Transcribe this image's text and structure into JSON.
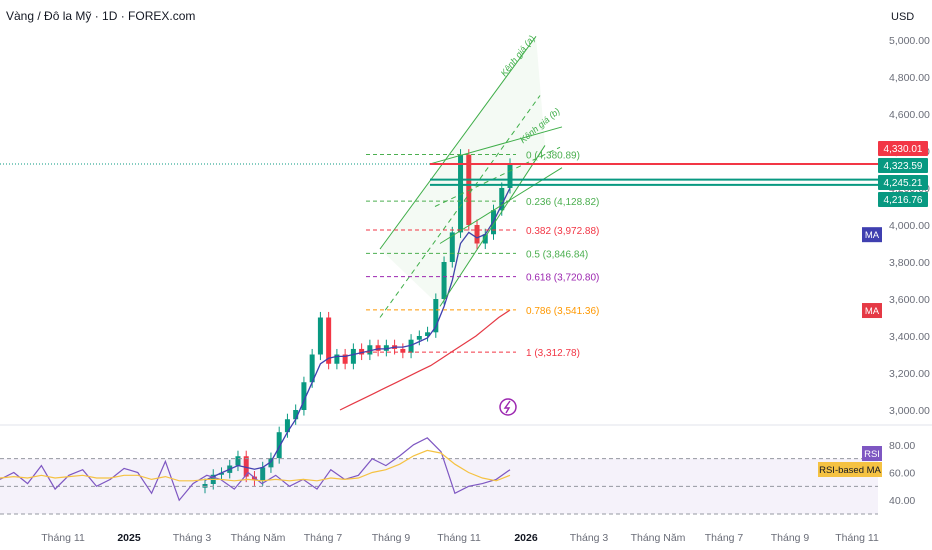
{
  "header": {
    "title": "Vàng / Đô la Mỹ · 1D · FOREX.com",
    "currency": "USD"
  },
  "colors": {
    "up": "#089981",
    "down": "#f23645",
    "ma_slow": "#e53945",
    "ma_fast": "#3f3fb0",
    "rsi": "#7e57c2",
    "rsi_ma": "#f5c242",
    "channel": "#3fae49",
    "text": "#131722",
    "axis": "#6a6d78"
  },
  "chart_data": [
    {
      "type": "line",
      "title": "Vàng / Đô la Mỹ · 1D · FOREX.com",
      "ylabel": "USD",
      "y_ticks": [
        "5,000.00",
        "4,800.00",
        "4,600.00",
        "4,400.00",
        "4,200.00",
        "4,000.00",
        "3,800.00",
        "3,600.00",
        "3,400.00",
        "3,200.00",
        "3,000.00"
      ],
      "x_ticks": [
        "Tháng 11",
        "2025",
        "Tháng 3",
        "Tháng Năm",
        "Tháng 7",
        "Tháng 9",
        "Tháng 11",
        "2026",
        "Tháng 3",
        "Tháng Năm",
        "Tháng 7",
        "Tháng 9",
        "Tháng 11"
      ],
      "ylim": [
        2950,
        5050
      ],
      "price": [
        2600,
        2650,
        2660,
        2700,
        2750,
        2640,
        2620,
        2690,
        2740,
        2880,
        2950,
        3000,
        3150,
        3300,
        3500,
        3250,
        3300,
        3250,
        3330,
        3300,
        3350,
        3320,
        3350,
        3330,
        3310,
        3380,
        3400,
        3420,
        3600,
        3800,
        3960,
        4380,
        4000,
        3900,
        3950,
        4080,
        4200,
        4330
      ],
      "ma_fast": [
        2620,
        2640,
        2660,
        2680,
        2700,
        2690,
        2680,
        2690,
        2720,
        2800,
        2880,
        2950,
        3050,
        3150,
        3250,
        3280,
        3290,
        3290,
        3300,
        3310,
        3320,
        3330,
        3330,
        3340,
        3340,
        3350,
        3370,
        3390,
        3450,
        3560,
        3700,
        3900,
        3960,
        3930,
        3950,
        4020,
        4110,
        4200
      ],
      "ma_slow": [
        3000,
        3030,
        3060,
        3090,
        3120,
        3150,
        3180,
        3210,
        3240,
        3280,
        3320,
        3360,
        3400,
        3450,
        3500,
        3540
      ],
      "ma_labels": [
        "MA",
        "MA"
      ],
      "fib_levels": [
        {
          "label": "0 (4,380.89)",
          "value": 4380.89,
          "color": "#4caf50"
        },
        {
          "label": "0.236 (4,128.82)",
          "value": 4128.82,
          "color": "#4caf50"
        },
        {
          "label": "0.382 (3,972.88)",
          "value": 3972.88,
          "color": "#f23645"
        },
        {
          "label": "0.5 (3,846.84)",
          "value": 3846.84,
          "color": "#4caf50"
        },
        {
          "label": "0.618 (3,720.80)",
          "value": 3720.8,
          "color": "#9c27b0"
        },
        {
          "label": "0.786 (3,541.36)",
          "value": 3541.36,
          "color": "#ff9800"
        },
        {
          "label": "1 (3,312.78)",
          "value": 3312.78,
          "color": "#f23645"
        }
      ],
      "channel_labels": [
        "Kênh giá (a)",
        "Kênh giá (b)"
      ],
      "price_tags": [
        {
          "text": "4,330.01",
          "value": 4330.01,
          "color": "#f23645"
        },
        {
          "text": "4,323.59",
          "value": 4323.59,
          "color": "#089981"
        },
        {
          "text": "4,245.21",
          "value": 4245.21,
          "color": "#089981"
        },
        {
          "text": "4,216.76",
          "value": 4216.76,
          "color": "#089981"
        }
      ],
      "hlines": [
        {
          "value": 4330.01,
          "color": "#f23645"
        },
        {
          "value": 4245.21,
          "color": "#089981"
        },
        {
          "value": 4216.76,
          "color": "#089981"
        }
      ]
    },
    {
      "type": "line",
      "name": "RSI",
      "ylim": [
        30,
        90
      ],
      "y_ticks": [
        "80.00",
        "60.00",
        "40.00"
      ],
      "bands": [
        70,
        50,
        30
      ],
      "labels": [
        "RSI",
        "RSI-based MA"
      ],
      "rsi": [
        55,
        60,
        52,
        65,
        48,
        58,
        62,
        50,
        55,
        63,
        60,
        45,
        68,
        40,
        52,
        58,
        55,
        48,
        60,
        52,
        58,
        50,
        55,
        48,
        62,
        55,
        58,
        70,
        65,
        72,
        80,
        85,
        75,
        45,
        50,
        52,
        55,
        62
      ],
      "rsi_ma": [
        56,
        57,
        56,
        58,
        56,
        57,
        58,
        56,
        56,
        58,
        58,
        55,
        57,
        54,
        54,
        55,
        55,
        54,
        55,
        54,
        55,
        54,
        55,
        54,
        56,
        55,
        56,
        60,
        62,
        66,
        72,
        76,
        74,
        66,
        60,
        56,
        54,
        58
      ]
    }
  ]
}
